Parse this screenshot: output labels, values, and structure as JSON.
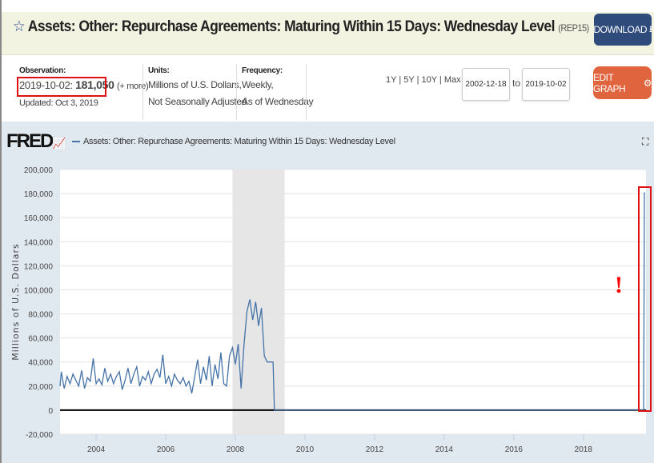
{
  "header": {
    "star_icon": "star-outline-icon",
    "title": "Assets: Other: Repurchase Agreements: Maturing Within 15 Days: Wednesday Level",
    "code": "(REP15)",
    "download_label": "DOWNLOAD",
    "download_icon": "download-icon"
  },
  "observation": {
    "label": "Observation:",
    "date": "2019-10-02:",
    "value": "181,050",
    "more": "(+ more)",
    "updated": "Updated: Oct 3, 2019"
  },
  "units": {
    "label": "Units:",
    "line1": "Millions of U.S. Dollars,",
    "line2": "Not Seasonally Adjusted"
  },
  "frequency": {
    "label": "Frequency:",
    "line1": "Weekly,",
    "line2": "As of Wednesday"
  },
  "ranges": [
    "1Y",
    "5Y",
    "10Y",
    "Max"
  ],
  "date_from": "2002-12-18",
  "to_label": "to",
  "date_to": "2019-10-02",
  "edit_label": "EDIT GRAPH",
  "edit_icon": "gear-icon",
  "logo": "FRED",
  "expand_icon": "fullscreen-icon",
  "annotation": "!",
  "colors": {
    "series": "#4572a7",
    "recession": "#e6e6e6",
    "download": "#2f4b7c",
    "edit": "#e0653f",
    "annotation": "#e01010"
  },
  "chart_data": {
    "type": "line",
    "title": "",
    "legend": [
      "Assets: Other: Repurchase Agreements: Maturing Within 15 Days: Wednesday Level"
    ],
    "legend_placement": "top-left",
    "ylabel": "Millions of U.S. Dollars",
    "ylim": [
      -20000,
      200000
    ],
    "yticks": [
      200000,
      180000,
      160000,
      140000,
      120000,
      100000,
      80000,
      60000,
      40000,
      20000,
      0,
      -20000
    ],
    "ytick_labels": [
      "200,000",
      "180,000",
      "160,000",
      "140,000",
      "120,000",
      "100,000",
      "80,000",
      "60,000",
      "40,000",
      "20,000",
      "0",
      "-20,000"
    ],
    "xlim": [
      "2002-12-18",
      "2019-10-02"
    ],
    "xticks": [
      "2004",
      "2006",
      "2008",
      "2010",
      "2012",
      "2014",
      "2016",
      "2018"
    ],
    "grid": true,
    "recession": [
      "2007-12-01",
      "2009-06-01"
    ],
    "series": [
      {
        "points": [
          [
            "2002-12-18",
            20000
          ],
          [
            "2003-01",
            32000
          ],
          [
            "2003-02",
            18000
          ],
          [
            "2003-03",
            28000
          ],
          [
            "2003-04",
            22000
          ],
          [
            "2003-05",
            30000
          ],
          [
            "2003-06",
            25000
          ],
          [
            "2003-07",
            20000
          ],
          [
            "2003-08",
            33000
          ],
          [
            "2003-09",
            18000
          ],
          [
            "2003-10",
            27000
          ],
          [
            "2003-11",
            24000
          ],
          [
            "2003-12",
            43000
          ],
          [
            "2004-01",
            22000
          ],
          [
            "2004-02",
            26000
          ],
          [
            "2004-03",
            21000
          ],
          [
            "2004-04",
            35000
          ],
          [
            "2004-05",
            24000
          ],
          [
            "2004-06",
            30000
          ],
          [
            "2004-07",
            22000
          ],
          [
            "2004-08",
            28000
          ],
          [
            "2004-09",
            32000
          ],
          [
            "2004-10",
            17000
          ],
          [
            "2004-11",
            25000
          ],
          [
            "2004-12",
            35000
          ],
          [
            "2005-01",
            22000
          ],
          [
            "2005-02",
            30000
          ],
          [
            "2005-03",
            36000
          ],
          [
            "2005-04",
            20000
          ],
          [
            "2005-05",
            28000
          ],
          [
            "2005-06",
            25000
          ],
          [
            "2005-07",
            32000
          ],
          [
            "2005-08",
            22000
          ],
          [
            "2005-09",
            30000
          ],
          [
            "2005-10",
            34000
          ],
          [
            "2005-11",
            27000
          ],
          [
            "2005-12",
            46000
          ],
          [
            "2006-01",
            22000
          ],
          [
            "2006-02",
            28000
          ],
          [
            "2006-03",
            20000
          ],
          [
            "2006-04",
            30000
          ],
          [
            "2006-05",
            25000
          ],
          [
            "2006-06",
            22000
          ],
          [
            "2006-07",
            27000
          ],
          [
            "2006-08",
            20000
          ],
          [
            "2006-09",
            24000
          ],
          [
            "2006-10",
            14000
          ],
          [
            "2006-11",
            28000
          ],
          [
            "2006-12",
            42000
          ],
          [
            "2007-01",
            22000
          ],
          [
            "2007-02",
            36000
          ],
          [
            "2007-03",
            25000
          ],
          [
            "2007-04",
            45000
          ],
          [
            "2007-05",
            20000
          ],
          [
            "2007-06",
            38000
          ],
          [
            "2007-07",
            26000
          ],
          [
            "2007-08",
            48000
          ],
          [
            "2007-09",
            22000
          ],
          [
            "2007-10",
            20000
          ],
          [
            "2007-11",
            45000
          ],
          [
            "2007-12",
            52000
          ],
          [
            "2008-01",
            38000
          ],
          [
            "2008-02",
            55000
          ],
          [
            "2008-03",
            18000
          ],
          [
            "2008-04",
            55000
          ],
          [
            "2008-05",
            82000
          ],
          [
            "2008-06",
            92000
          ],
          [
            "2008-07",
            75000
          ],
          [
            "2008-08",
            90000
          ],
          [
            "2008-09",
            70000
          ],
          [
            "2008-10",
            85000
          ],
          [
            "2008-11",
            45000
          ],
          [
            "2008-12",
            40000
          ],
          [
            "2009-01",
            40000
          ],
          [
            "2009-02",
            40000
          ],
          [
            "2009-02-15",
            0
          ],
          [
            "2019-09-25",
            0
          ],
          [
            "2019-10-02",
            181050
          ]
        ]
      }
    ]
  }
}
